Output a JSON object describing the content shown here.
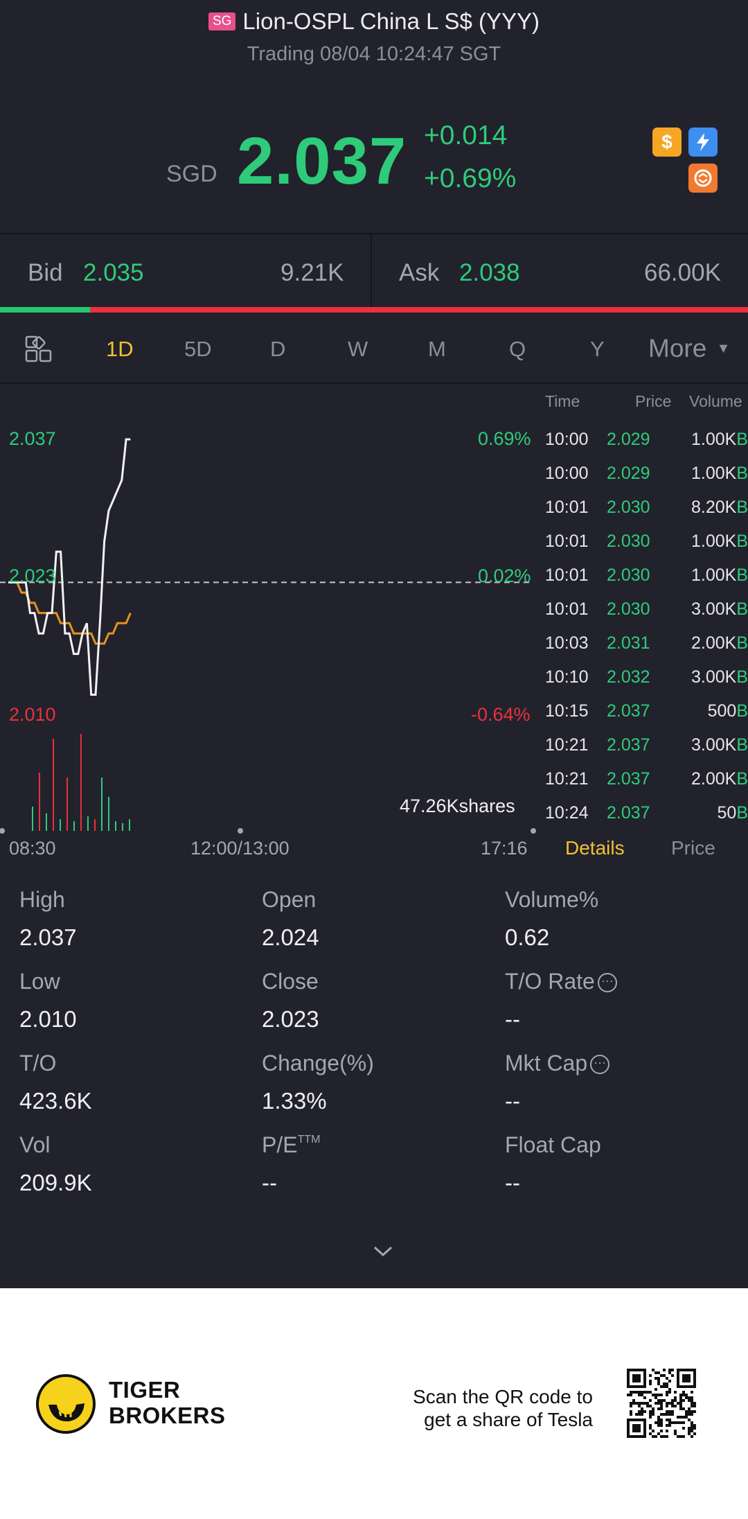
{
  "header": {
    "market_badge": "SG",
    "title": "Lion-OSPL China L S$ (YYY)",
    "subtitle": "Trading 08/04 10:24:47 SGT",
    "currency": "SGD",
    "price": "2.037",
    "change": "+0.014",
    "change_pct": "+0.69%",
    "icons": [
      "dollar-icon",
      "lightning-icon",
      "exchange-icon"
    ]
  },
  "quote": {
    "bid_label": "Bid",
    "bid_price": "2.035",
    "bid_volume": "9.21K",
    "ask_label": "Ask",
    "ask_price": "2.038",
    "ask_volume": "66.00K",
    "bid_share": 0.12
  },
  "tabs": {
    "items": [
      "1D",
      "5D",
      "D",
      "W",
      "M",
      "Q",
      "Y"
    ],
    "active": "1D",
    "more_label": "More"
  },
  "chart": {
    "price_high_label": "2.037",
    "price_ref_label": "2.023",
    "price_low_label": "2.010",
    "pct_high_label": "0.69%",
    "pct_ref_label": "0.02%",
    "pct_low_label": "-0.64%",
    "volume_label": "47.26Kshares",
    "time_start": "08:30",
    "time_mid": "12:00/13:00",
    "time_end": "17:16"
  },
  "chart_data": {
    "type": "line",
    "ylim": [
      2.01,
      2.037
    ],
    "reference": 2.023,
    "series": [
      {
        "values": [
          2.023,
          2.023,
          2.023,
          2.023,
          2.023,
          2.02,
          2.02,
          2.018,
          2.018,
          2.02,
          2.02,
          2.026,
          2.026,
          2.018,
          2.018,
          2.016,
          2.016,
          2.018,
          2.019,
          2.012,
          2.012,
          2.019,
          2.027,
          2.03,
          2.031,
          2.032,
          2.033,
          2.037,
          2.037
        ]
      },
      {
        "values": [
          2.023,
          2.023,
          2.023,
          2.022,
          2.022,
          2.021,
          2.021,
          2.02,
          2.02,
          2.02,
          2.02,
          2.02,
          2.019,
          2.019,
          2.019,
          2.018,
          2.018,
          2.018,
          2.018,
          2.018,
          2.017,
          2.017,
          2.017,
          2.018,
          2.018,
          2.019,
          2.019,
          2.019,
          2.02
        ]
      }
    ],
    "volume": [
      {
        "color": "green",
        "value": 0.25
      },
      {
        "color": "red",
        "value": 0.6
      },
      {
        "color": "green",
        "value": 0.18
      },
      {
        "color": "red",
        "value": 0.95
      },
      {
        "color": "green",
        "value": 0.12
      },
      {
        "color": "red",
        "value": 0.55
      },
      {
        "color": "green",
        "value": 0.1
      },
      {
        "color": "red",
        "value": 1.0
      },
      {
        "color": "green",
        "value": 0.15
      },
      {
        "color": "red",
        "value": 0.12
      },
      {
        "color": "green",
        "value": 0.55
      },
      {
        "color": "green",
        "value": 0.35
      },
      {
        "color": "green",
        "value": 0.1
      },
      {
        "color": "green",
        "value": 0.08
      },
      {
        "color": "green",
        "value": 0.12
      }
    ]
  },
  "trades": {
    "headers": {
      "time": "Time",
      "price": "Price",
      "volume": "Volume"
    },
    "rows": [
      {
        "time": "10:00",
        "price": "2.029",
        "volume": "1.00K",
        "flag": "B"
      },
      {
        "time": "10:00",
        "price": "2.029",
        "volume": "1.00K",
        "flag": "B"
      },
      {
        "time": "10:01",
        "price": "2.030",
        "volume": "8.20K",
        "flag": "B"
      },
      {
        "time": "10:01",
        "price": "2.030",
        "volume": "1.00K",
        "flag": "B"
      },
      {
        "time": "10:01",
        "price": "2.030",
        "volume": "1.00K",
        "flag": "B"
      },
      {
        "time": "10:01",
        "price": "2.030",
        "volume": "3.00K",
        "flag": "B"
      },
      {
        "time": "10:03",
        "price": "2.031",
        "volume": "2.00K",
        "flag": "B"
      },
      {
        "time": "10:10",
        "price": "2.032",
        "volume": "3.00K",
        "flag": "B"
      },
      {
        "time": "10:15",
        "price": "2.037",
        "volume": "500",
        "flag": "B"
      },
      {
        "time": "10:21",
        "price": "2.037",
        "volume": "3.00K",
        "flag": "B"
      },
      {
        "time": "10:21",
        "price": "2.037",
        "volume": "2.00K",
        "flag": "B"
      },
      {
        "time": "10:24",
        "price": "2.037",
        "volume": "50",
        "flag": "B"
      }
    ],
    "tab_details": "Details",
    "tab_price": "Price"
  },
  "stats": {
    "high_label": "High",
    "high": "2.037",
    "open_label": "Open",
    "open": "2.024",
    "volpct_label": "Volume%",
    "volpct": "0.62",
    "low_label": "Low",
    "low": "2.010",
    "close_label": "Close",
    "close": "2.023",
    "torate_label": "T/O Rate",
    "torate": "--",
    "to_label": "T/O",
    "to": "423.6K",
    "changepct_label": "Change(%)",
    "changepct": "1.33%",
    "mktcap_label": "Mkt Cap",
    "mktcap": "--",
    "vol_label": "Vol",
    "vol": "209.9K",
    "pe_label": "P/E",
    "pe_sup": "TTM",
    "pe": "--",
    "floatcap_label": "Float Cap",
    "floatcap": "--"
  },
  "footer": {
    "brand_line1": "TIGER",
    "brand_line2": "BROKERS",
    "scan_line1": "Scan the QR code to",
    "scan_line2": "get a share of Tesla"
  },
  "colors": {
    "background": "#22222c",
    "up": "#2ecc7a",
    "down": "#e8323c",
    "accent": "#f2c134",
    "avg_line": "#e8921e"
  }
}
